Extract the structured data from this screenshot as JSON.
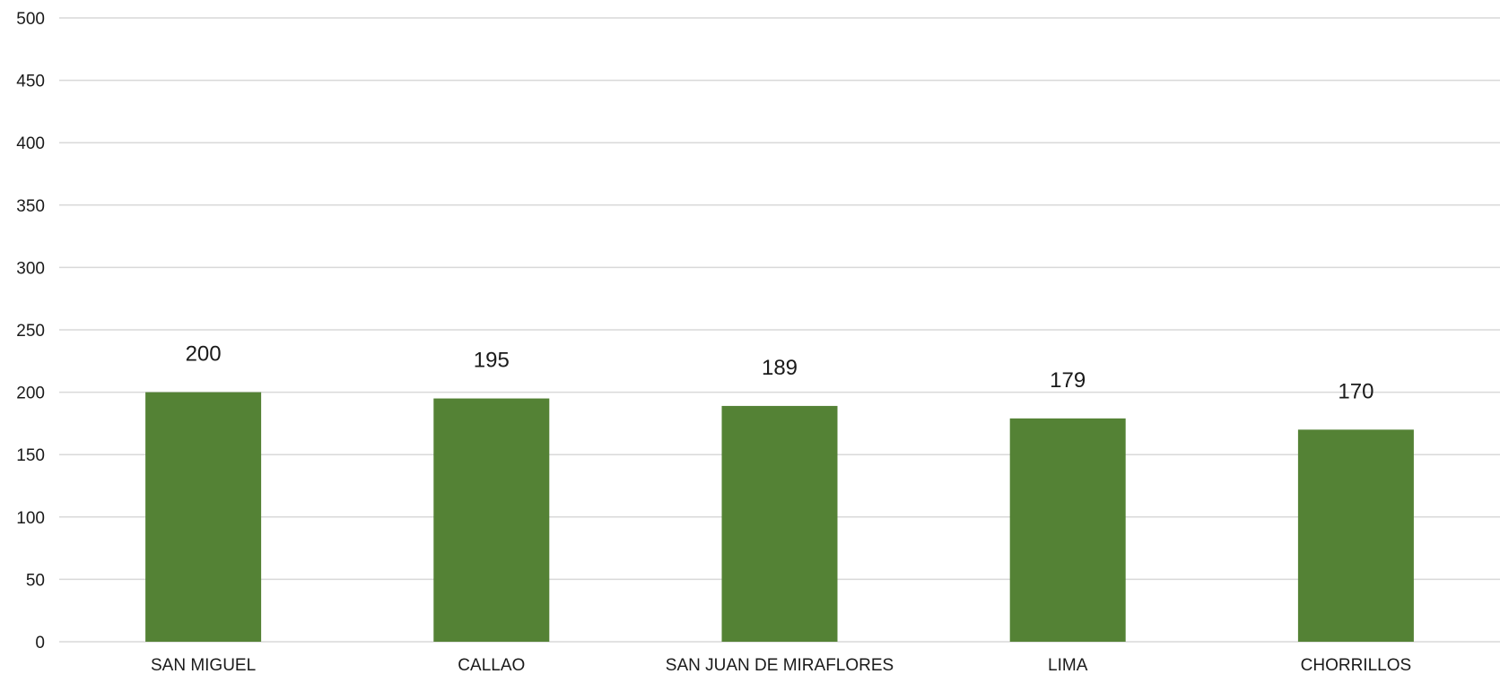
{
  "chart_data": {
    "type": "bar",
    "title": "",
    "xlabel": "",
    "ylabel": "",
    "categories": [
      "SAN MIGUEL",
      "CALLAO",
      "SAN JUAN DE MIRAFLORES",
      "LIMA",
      "CHORRILLOS"
    ],
    "values": [
      200,
      195,
      189,
      179,
      170
    ],
    "data_labels": [
      "200",
      "195",
      "189",
      "179",
      "170"
    ],
    "ylim": [
      0,
      500
    ],
    "yticks": [
      0,
      50,
      100,
      150,
      200,
      250,
      300,
      350,
      400,
      450,
      500
    ],
    "ytick_labels": [
      "0",
      "50",
      "100",
      "150",
      "200",
      "250",
      "300",
      "350",
      "400",
      "450",
      "500"
    ],
    "grid": true,
    "legend": "none",
    "bar_color": "#548235",
    "grid_color": "#d9d9d9"
  }
}
